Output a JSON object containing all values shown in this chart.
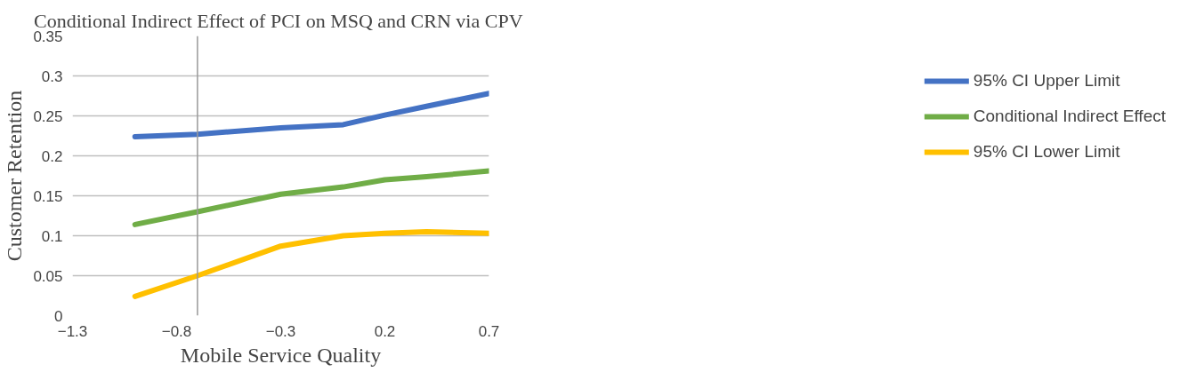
{
  "chart_data": {
    "type": "line",
    "title": "Conditional Indirect Effect of PCI on MSQ and CRN  via CPV",
    "xlabel": "Mobile Service Quality",
    "ylabel": "Customer Retention",
    "x": [
      -1.0,
      -0.7,
      -0.3,
      0,
      0.2,
      0.4,
      0.7
    ],
    "series": [
      {
        "name": "95% CI Upper Limit",
        "color": "#4472c4",
        "values": [
          0.224,
          0.227,
          0.235,
          0.239,
          0.251,
          0.262,
          0.278
        ]
      },
      {
        "name": "Conditional Indirect Effect",
        "color": "#70ad47",
        "values": [
          0.114,
          0.13,
          0.152,
          0.161,
          0.17,
          0.174,
          0.181
        ]
      },
      {
        "name": "95% CI Lower Limit",
        "color": "#ffc000",
        "values": [
          0.024,
          0.05,
          0.087,
          0.1,
          0.103,
          0.105,
          0.103
        ]
      }
    ],
    "xlim": [
      -1.3,
      0.7
    ],
    "xticks": [
      -1.3,
      -0.8,
      -0.3,
      0.2,
      0.7
    ],
    "ylim": [
      0,
      0.35
    ],
    "yticks": [
      0,
      0.05,
      0.1,
      0.15,
      0.2,
      0.25,
      0.3,
      0.35
    ],
    "ref_lines": [
      {
        "axis": "x",
        "value": -0.7,
        "color": "#999999"
      }
    ],
    "grid": "y",
    "legend": "right",
    "marker": "none",
    "line_style": "solid"
  }
}
